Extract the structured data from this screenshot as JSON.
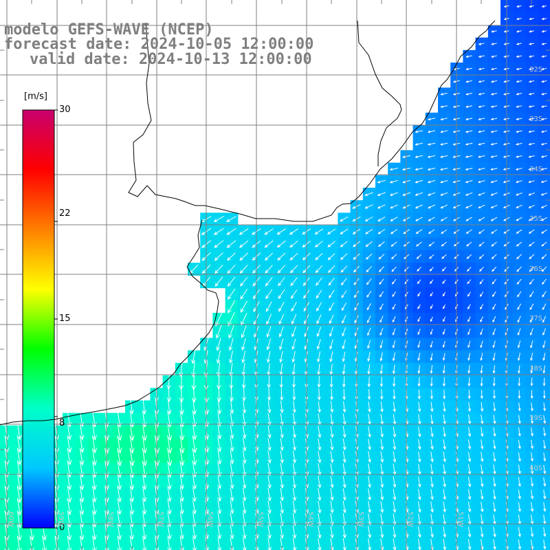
{
  "title": {
    "line1": "modelo GEFS-WAVE (NCEP)",
    "line2": "forecast date: 2024-10-05 12:00:00",
    "line3": "valid date: 2024-10-13 12:00:00"
  },
  "colorbar": {
    "unit": "[m/s]",
    "ticks": [
      "30",
      "22",
      "15",
      "8",
      "0"
    ],
    "tick_values": [
      30,
      22,
      15,
      8,
      0
    ],
    "min": 0,
    "max": 30,
    "colors": [
      "#0000ff",
      "#00c8ff",
      "#00ffc8",
      "#00ff00",
      "#ffff00",
      "#ff8000",
      "#ff0000",
      "#c8006e"
    ]
  },
  "map": {
    "grid_color": "#7f7f7f",
    "coast_color": "#000000",
    "land_color": "#ffffff",
    "lat_labels": [
      "32S",
      "33S",
      "34S",
      "35S",
      "36S",
      "37S",
      "38S",
      "39S",
      "40S"
    ],
    "lon_labels": [
      "60W",
      "59W",
      "58W",
      "57W",
      "56W",
      "55W",
      "54W",
      "53W",
      "52W",
      "51W"
    ],
    "wind_speed_range_ms": [
      0,
      9.5
    ]
  }
}
